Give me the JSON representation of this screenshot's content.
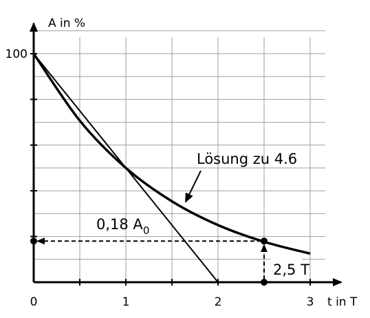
{
  "chart_data": {
    "type": "line",
    "xlabel": "t in T",
    "ylabel": "A in %",
    "xlim": [
      0,
      3
    ],
    "ylim": [
      0,
      100
    ],
    "grid": true,
    "xticks": [
      0,
      1,
      2,
      3
    ],
    "xtick_labels": [
      "0",
      "1",
      "2",
      "3"
    ],
    "yticks": [
      100
    ],
    "ytick_labels": [
      "100"
    ],
    "series": [
      {
        "kind": "exponential-decay",
        "x": [
          0,
          0.5,
          1,
          1.5,
          2,
          2.5,
          3
        ],
        "y": [
          100,
          70.7,
          50,
          35.4,
          25,
          17.7,
          12.5
        ]
      },
      {
        "kind": "straight-line",
        "x": [
          0,
          2
        ],
        "y": [
          100,
          0
        ]
      }
    ],
    "marked_point": {
      "x": 2.5,
      "y": 18
    },
    "annotations": {
      "solution": "Lösung zu 4.6",
      "amount": "0,18 A",
      "amount_subscript": "0",
      "time": "2,5 T"
    }
  }
}
